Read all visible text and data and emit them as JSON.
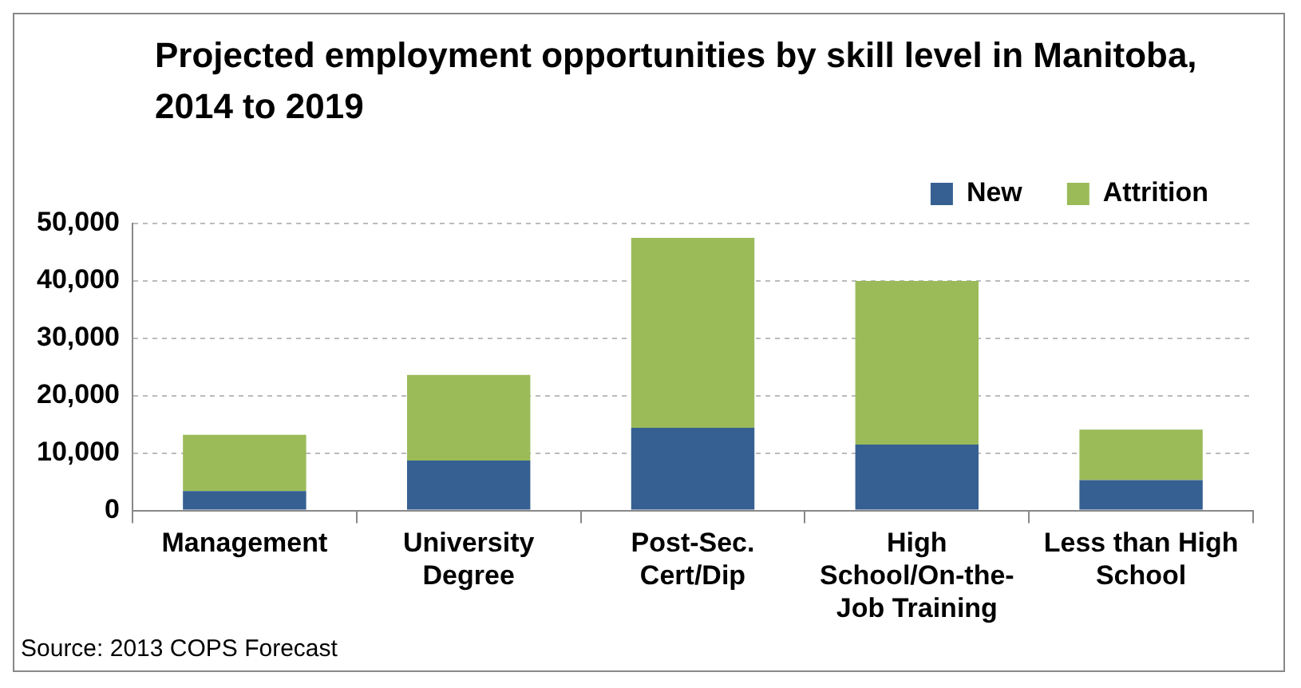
{
  "chart_data": {
    "type": "bar",
    "title": "Projected employment opportunities by skill level in Manitoba, 2014 to 2019",
    "categories": [
      "Management",
      "University Degree",
      "Post-Sec. Cert/Dip",
      "High School/On-the-Job Training",
      "Less than High School"
    ],
    "series": [
      {
        "name": "New",
        "color": "#366092",
        "values": [
          3400,
          8700,
          14400,
          11500,
          5300
        ]
      },
      {
        "name": "Attrition",
        "color": "#9bbb59",
        "values": [
          9800,
          14900,
          33100,
          28500,
          8800
        ]
      }
    ],
    "stacked": true,
    "ylim": [
      0,
      50000
    ],
    "yticks": [
      0,
      {
        "value": 10000,
        "label": "10,000"
      },
      {
        "value": 20000,
        "label": "20,000"
      },
      {
        "value": 30000,
        "label": "30,000"
      },
      {
        "value": 40000,
        "label": "40,000"
      },
      {
        "value": 50000,
        "label": "50,000"
      }
    ],
    "grid": "y",
    "legend": "top right",
    "annotations": [
      "Source: 2013 COPS Forecast"
    ]
  }
}
